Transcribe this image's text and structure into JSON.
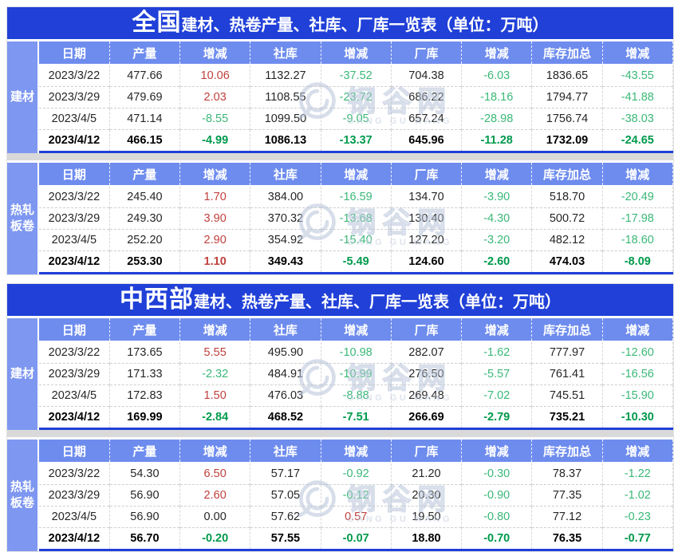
{
  "colors": {
    "title_bg": "#2040d8",
    "header_bg": "#6e8cee",
    "label_bg": "#7e97f0",
    "positive": "#c0413d",
    "negative": "#3bb878",
    "negative_bold": "#009a4c",
    "section_underline": "#1f3ed8",
    "divider_gray": "#d9d9d9"
  },
  "watermark": {
    "cn": "钢谷网",
    "en": "GANG GU WANG"
  },
  "tables": [
    {
      "region": "全国",
      "title_rest": "建材、热卷产量、社库、厂库一览表（单位：万吨）",
      "sections": [
        {
          "label": "建材",
          "headers": [
            "日期",
            "产量",
            "增减",
            "社库",
            "增减",
            "厂库",
            "增减",
            "库存加总",
            "增减"
          ],
          "rows": [
            [
              "2023/3/22",
              "477.66",
              "10.06",
              "1132.27",
              "-37.52",
              "704.38",
              "-6.03",
              "1836.65",
              "-43.55"
            ],
            [
              "2023/3/29",
              "479.69",
              "2.03",
              "1108.55",
              "-23.72",
              "686.22",
              "-18.16",
              "1794.77",
              "-41.88"
            ],
            [
              "2023/4/5",
              "471.14",
              "-8.55",
              "1099.50",
              "-9.05",
              "657.24",
              "-28.98",
              "1756.74",
              "-38.03"
            ],
            [
              "2023/4/12",
              "466.15",
              "-4.99",
              "1086.13",
              "-13.37",
              "645.96",
              "-11.28",
              "1732.09",
              "-24.65"
            ]
          ]
        },
        {
          "label": "热轧板卷",
          "headers": [
            "日期",
            "产量",
            "增减",
            "社库",
            "增减",
            "厂库",
            "增减",
            "库存加总",
            "增减"
          ],
          "rows": [
            [
              "2023/3/22",
              "245.40",
              "1.70",
              "384.00",
              "-16.59",
              "134.70",
              "-3.90",
              "518.70",
              "-20.49"
            ],
            [
              "2023/3/29",
              "249.30",
              "3.90",
              "370.32",
              "-13.68",
              "130.40",
              "-4.30",
              "500.72",
              "-17.98"
            ],
            [
              "2023/4/5",
              "252.20",
              "2.90",
              "354.92",
              "-15.40",
              "127.20",
              "-3.20",
              "482.12",
              "-18.60"
            ],
            [
              "2023/4/12",
              "253.30",
              "1.10",
              "349.43",
              "-5.49",
              "124.60",
              "-2.60",
              "474.03",
              "-8.09"
            ]
          ]
        }
      ]
    },
    {
      "region": "中西部",
      "title_rest": "建材、热卷产量、社库、厂库一览表（单位：万吨）",
      "sections": [
        {
          "label": "建材",
          "headers": [
            "日期",
            "产量",
            "增减",
            "社库",
            "增减",
            "厂库",
            "增减",
            "库存加总",
            "增减"
          ],
          "rows": [
            [
              "2023/3/22",
              "173.65",
              "5.55",
              "495.90",
              "-10.98",
              "282.07",
              "-1.62",
              "777.97",
              "-12.60"
            ],
            [
              "2023/3/29",
              "171.33",
              "-2.32",
              "484.91",
              "-10.99",
              "276.50",
              "-5.57",
              "761.41",
              "-16.56"
            ],
            [
              "2023/4/5",
              "172.83",
              "1.50",
              "476.03",
              "-8.88",
              "269.48",
              "-7.02",
              "745.51",
              "-15.90"
            ],
            [
              "2023/4/12",
              "169.99",
              "-2.84",
              "468.52",
              "-7.51",
              "266.69",
              "-2.79",
              "735.21",
              "-10.30"
            ]
          ]
        },
        {
          "label": "热轧板卷",
          "headers": [
            "日期",
            "产量",
            "增减",
            "社库",
            "增减",
            "厂库",
            "增减",
            "库存加总",
            "增减"
          ],
          "rows": [
            [
              "2023/3/22",
              "54.30",
              "6.50",
              "57.17",
              "-0.92",
              "21.20",
              "-0.30",
              "78.37",
              "-1.22"
            ],
            [
              "2023/3/29",
              "56.90",
              "2.60",
              "57.05",
              "-0.12",
              "20.30",
              "-0.90",
              "77.35",
              "-1.02"
            ],
            [
              "2023/4/5",
              "56.90",
              "0.00",
              "57.62",
              "0.57",
              "19.50",
              "-0.80",
              "77.12",
              "-0.23"
            ],
            [
              "2023/4/12",
              "56.70",
              "-0.20",
              "57.55",
              "-0.07",
              "18.80",
              "-0.70",
              "76.35",
              "-0.77"
            ]
          ]
        }
      ]
    }
  ]
}
